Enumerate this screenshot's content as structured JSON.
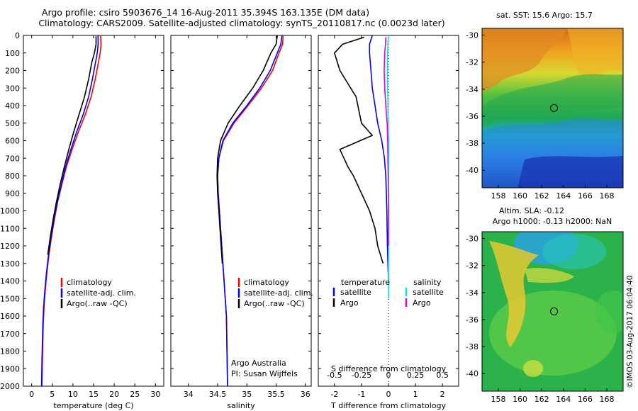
{
  "header": {
    "line1": "Argo profile: csiro 5903676_14 16-Aug-2011 35.394S 163.135E (DM data)",
    "line2": "Climatology: CARS2009. Satellite-adjusted climatology: synTS_20110817.nc (0.0023d later)"
  },
  "watermark": "©IMOS 03-Aug-2017 06:04:40",
  "colors": {
    "climatology": "#ff0000",
    "satellite": "#0000ff",
    "argo": "#000000",
    "sal_satellite": "#00e5ee",
    "sal_argo": "#e000e0"
  },
  "chart_data": [
    {
      "type": "line",
      "title": "",
      "xlabel": "temperature (deg C)",
      "ylabel": "",
      "xlim": [
        -2,
        32
      ],
      "ylim": [
        2000,
        0
      ],
      "xticks": [
        "0",
        "5",
        "10",
        "15",
        "20",
        "25",
        "30"
      ],
      "yticks": [
        "0",
        "100",
        "200",
        "300",
        "400",
        "500",
        "600",
        "700",
        "800",
        "900",
        "1000",
        "1100",
        "1200",
        "1300",
        "1400",
        "1500",
        "1600",
        "1700",
        "1800",
        "1900",
        "2000"
      ],
      "legend": [
        "climatology",
        "satellite-adj. clim.",
        "Argo(..raw -QC)"
      ],
      "series": [
        {
          "name": "climatology",
          "x": [
            16.7,
            16.8,
            16.6,
            16.2,
            15.4,
            14.4,
            13.0,
            11.3,
            9.8,
            8.4,
            7.3,
            6.3,
            5.5,
            4.8,
            4.2,
            3.7,
            3.3,
            3.0,
            2.8,
            2.6,
            2.5
          ],
          "y": [
            0,
            50,
            100,
            150,
            250,
            350,
            450,
            550,
            650,
            750,
            850,
            950,
            1050,
            1150,
            1250,
            1350,
            1450,
            1550,
            1650,
            1850,
            2000
          ]
        },
        {
          "name": "satellite-adj. clim.",
          "x": [
            16.1,
            16.1,
            15.9,
            15.5,
            14.7,
            13.8,
            12.5,
            10.9,
            9.5,
            8.2,
            7.2,
            6.2,
            5.4,
            4.7,
            4.1,
            3.6,
            3.2,
            2.9,
            2.7,
            2.5,
            2.4
          ],
          "y": [
            0,
            50,
            100,
            150,
            250,
            350,
            450,
            550,
            650,
            750,
            850,
            950,
            1050,
            1150,
            1250,
            1350,
            1450,
            1550,
            1650,
            1850,
            2000
          ]
        },
        {
          "name": "Argo(..raw -QC)",
          "x": [
            15.6,
            15.6,
            15.2,
            14.6,
            13.8,
            12.8,
            11.5,
            10.2,
            9.0,
            7.9,
            6.9,
            6.0,
            5.2,
            4.5,
            3.9
          ],
          "y": [
            5,
            50,
            100,
            150,
            250,
            350,
            450,
            550,
            650,
            750,
            850,
            950,
            1050,
            1150,
            1250
          ]
        }
      ]
    },
    {
      "type": "line",
      "title": "",
      "xlabel": "salinity",
      "ylabel": "",
      "xlim": [
        33.7,
        36.1
      ],
      "ylim": [
        2000,
        0
      ],
      "xticks": [
        "34",
        "34.5",
        "35",
        "35.5",
        "36"
      ],
      "legend": [
        "climatology",
        "satellite-adj. clim.",
        "Argo(..raw -QC)"
      ],
      "annotation": [
        "Argo Australia",
        "PI: Susan Wijffels"
      ],
      "series": [
        {
          "name": "climatology",
          "x": [
            35.62,
            35.61,
            35.55,
            35.44,
            35.25,
            35.02,
            34.78,
            34.6,
            34.52,
            34.5,
            34.51,
            34.53,
            34.55,
            34.57,
            34.59,
            34.61,
            34.63,
            34.65,
            34.66,
            34.67
          ],
          "y": [
            0,
            50,
            100,
            200,
            300,
            400,
            500,
            600,
            700,
            800,
            900,
            1000,
            1100,
            1200,
            1300,
            1400,
            1500,
            1600,
            1800,
            2000
          ]
        },
        {
          "name": "satellite-adj. clim.",
          "x": [
            35.6,
            35.58,
            35.52,
            35.4,
            35.22,
            35.0,
            34.76,
            34.59,
            34.52,
            34.5,
            34.51,
            34.53,
            34.55,
            34.57,
            34.59,
            34.61,
            34.63,
            34.65,
            34.66,
            34.67
          ],
          "y": [
            0,
            50,
            100,
            200,
            300,
            400,
            500,
            600,
            700,
            800,
            900,
            1000,
            1100,
            1200,
            1300,
            1400,
            1500,
            1600,
            1800,
            2000
          ]
        },
        {
          "name": "Argo(..raw -QC)",
          "x": [
            35.52,
            35.5,
            35.41,
            35.28,
            35.1,
            34.88,
            34.68,
            34.55,
            34.5,
            34.49,
            34.5,
            34.52,
            34.54,
            34.56,
            34.58
          ],
          "y": [
            0,
            50,
            100,
            200,
            300,
            400,
            500,
            600,
            700,
            800,
            900,
            1000,
            1100,
            1200,
            1300
          ]
        }
      ]
    },
    {
      "type": "line",
      "title": "",
      "xlabel": "T difference from climatology",
      "xlabel_top": "S difference from climatology",
      "xlim": [
        -2.6,
        2.6
      ],
      "ylim": [
        2000,
        0
      ],
      "xticks": [
        "-2",
        "-1",
        "0",
        "1",
        "2"
      ],
      "xticks_salinity": [
        "-0.5",
        "-0.25",
        "0",
        "0.25",
        "0.5"
      ],
      "legend_temperature": [
        "temperature",
        "satellite",
        "Argo"
      ],
      "legend_salinity": [
        "salinity",
        "satellite",
        "Argo"
      ],
      "series": [
        {
          "name": "temperature satellite",
          "x": [
            -0.6,
            -0.7,
            -0.7,
            -0.65,
            -0.6,
            -0.5,
            -0.4,
            -0.25,
            -0.15,
            -0.1,
            -0.08,
            -0.06,
            -0.05,
            -0.04,
            -0.02,
            0.0
          ],
          "y": [
            0,
            50,
            100,
            200,
            300,
            400,
            500,
            600,
            700,
            800,
            900,
            1000,
            1100,
            1200,
            1300,
            1400
          ]
        },
        {
          "name": "temperature Argo",
          "x": [
            -0.9,
            -1.7,
            -2.0,
            -1.8,
            -1.6,
            -1.2,
            -1.0,
            -0.6,
            -1.8,
            -1.5,
            -1.3,
            -1.0,
            -0.7,
            -0.5,
            -0.4,
            -0.2
          ],
          "y": [
            10,
            50,
            100,
            200,
            250,
            350,
            500,
            570,
            650,
            750,
            800,
            900,
            1000,
            1100,
            1200,
            1300
          ]
        },
        {
          "name": "salinity satellite",
          "x": [
            0.0,
            -0.02,
            -0.03,
            -0.04,
            -0.03,
            -0.02,
            -0.01,
            0.0,
            0.0,
            0.0,
            0.0,
            0.0,
            0.0
          ],
          "y": [
            0,
            50,
            100,
            200,
            300,
            400,
            500,
            600,
            700,
            800,
            1000,
            1200,
            1500
          ]
        },
        {
          "name": "salinity Argo",
          "x": [
            -0.1,
            -0.11,
            -0.14,
            -0.16,
            -0.14,
            -0.1,
            -0.05,
            -0.03,
            -0.02,
            -0.01,
            0.0,
            0.0
          ],
          "y": [
            10,
            50,
            100,
            200,
            300,
            400,
            500,
            600,
            700,
            800,
            1000,
            1200
          ]
        }
      ]
    },
    {
      "type": "heatmap",
      "title": "sat. SST: 15.6 Argo: 15.7",
      "xlim": [
        156.5,
        169.5
      ],
      "ylim": [
        -41.3,
        -29.5
      ],
      "xticks": [
        "158",
        "160",
        "162",
        "164",
        "166",
        "168"
      ],
      "yticks": [
        "-30",
        "-32",
        "-34",
        "-36",
        "-38",
        "-40"
      ],
      "marker": {
        "lon": 163.135,
        "lat": -35.394
      }
    },
    {
      "type": "heatmap",
      "title": "Altim. SLA: -0.12",
      "subtitle": "Argo h1000: -0.13 h2000: NaN",
      "xlim": [
        156.5,
        169.5
      ],
      "ylim": [
        -41.3,
        -29.5
      ],
      "xticks": [
        "158",
        "160",
        "162",
        "164",
        "166",
        "168"
      ],
      "yticks": [
        "-30",
        "-32",
        "-34",
        "-36",
        "-38",
        "-40"
      ],
      "marker": {
        "lon": 163.135,
        "lat": -35.394
      }
    }
  ]
}
